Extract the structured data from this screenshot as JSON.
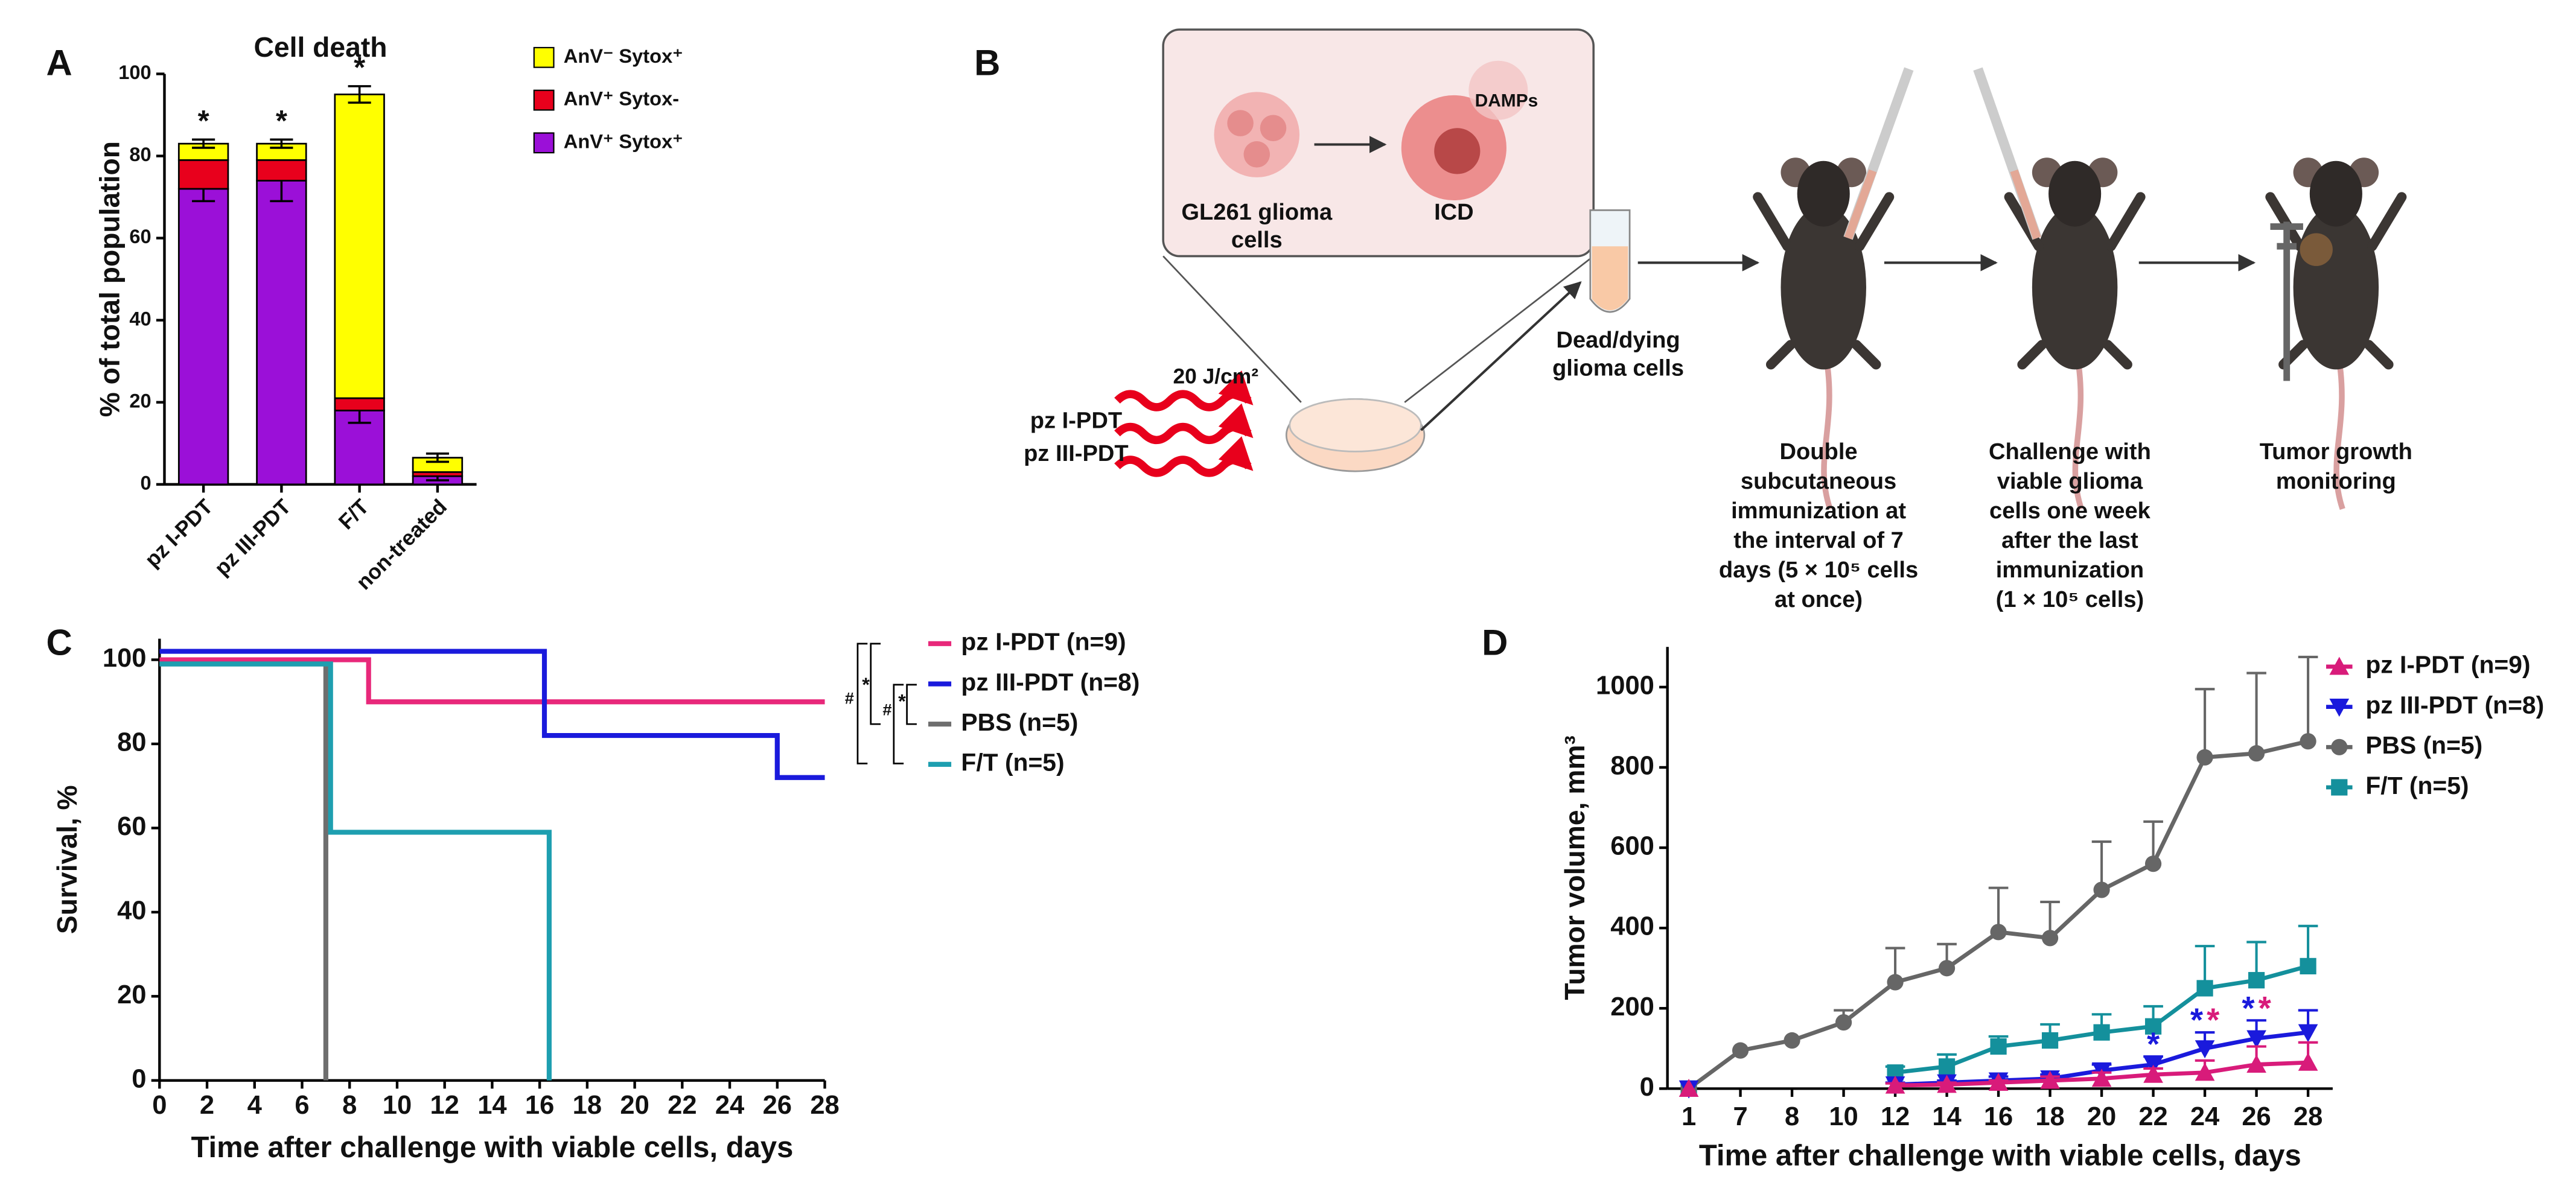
{
  "chart_data": [
    {
      "panel": "A",
      "type": "bar",
      "stacked": true,
      "title": "Cell death",
      "ylabel": "% of total population",
      "categories": [
        "pz I-PDT",
        "pz III-PDT",
        "F/T",
        "non-treated"
      ],
      "ylim": [
        0,
        100
      ],
      "yticks": [
        0,
        20,
        40,
        60,
        80,
        100
      ],
      "legend": "right",
      "series": [
        {
          "name": "AnV⁺ Sytox⁺",
          "color": "#9b10d8",
          "values": [
            72,
            74,
            18,
            2
          ],
          "errors": [
            3,
            5,
            3,
            1
          ]
        },
        {
          "name": "AnV⁺ Sytox-",
          "color": "#e8001c",
          "values": [
            7,
            5,
            3,
            1
          ]
        },
        {
          "name": "AnV⁻ Sytox⁺",
          "color": "#ffff00",
          "values": [
            4,
            4,
            74,
            3.5
          ],
          "errors": [
            1,
            1,
            2,
            1
          ]
        }
      ],
      "annotations": [
        {
          "text": "*",
          "category": "pz I-PDT"
        },
        {
          "text": "*",
          "category": "pz III-PDT"
        },
        {
          "text": "*",
          "category": "F/T"
        }
      ]
    },
    {
      "panel": "C",
      "type": "line",
      "step": true,
      "xlabel": "Time after challenge with viable cells, days",
      "ylabel": "Survival, %",
      "xlim": [
        0,
        28
      ],
      "xticks": [
        0,
        2,
        4,
        6,
        8,
        10,
        12,
        14,
        16,
        18,
        20,
        22,
        24,
        26,
        28
      ],
      "ylim": [
        0,
        105
      ],
      "yticks": [
        0,
        20,
        40,
        60,
        80,
        100
      ],
      "legend": "right",
      "series": [
        {
          "name": "pz I-PDT (n=9)",
          "color": "#e8287a",
          "x": [
            0,
            8.8,
            28
          ],
          "values": [
            100,
            90,
            90
          ]
        },
        {
          "name": "pz III-PDT (n=8)",
          "color": "#1a1adc",
          "x": [
            0,
            16.2,
            26,
            28
          ],
          "values": [
            102,
            82,
            72,
            72
          ]
        },
        {
          "name": "PBS (n=5)",
          "color": "#6e6e6e",
          "x": [
            0,
            7
          ],
          "values": [
            99,
            0
          ]
        },
        {
          "name": "F/T (n=5)",
          "color": "#1e9fb0",
          "x": [
            0,
            7.2,
            16.4
          ],
          "values": [
            99,
            59,
            0
          ]
        }
      ],
      "annotations": [
        "#",
        "*",
        "#",
        "*"
      ]
    },
    {
      "panel": "D",
      "type": "line",
      "xlabel": "Time after challenge with viable cells, days",
      "ylabel": "Tumor volume, mm³",
      "categories": [
        "1",
        "7",
        "8",
        "10",
        "12",
        "14",
        "16",
        "18",
        "20",
        "22",
        "24",
        "26",
        "28"
      ],
      "ylim": [
        0,
        1100
      ],
      "yticks": [
        0,
        200,
        400,
        600,
        800,
        1000
      ],
      "legend": "top-right",
      "series": [
        {
          "name": "pz I-PDT (n=9)",
          "color": "#d81b7a",
          "marker": "triangle-up",
          "values": [
            0,
            null,
            null,
            null,
            8,
            10,
            15,
            20,
            25,
            35,
            40,
            60,
            65
          ],
          "errors": [
            0,
            null,
            null,
            null,
            5,
            5,
            5,
            10,
            15,
            15,
            30,
            45,
            50
          ]
        },
        {
          "name": "pz III-PDT (n=8)",
          "color": "#1a1adc",
          "marker": "triangle-down",
          "values": [
            0,
            null,
            null,
            null,
            10,
            15,
            20,
            25,
            45,
            60,
            100,
            125,
            140
          ],
          "errors": [
            0,
            null,
            null,
            null,
            5,
            5,
            10,
            10,
            15,
            20,
            40,
            45,
            55
          ]
        },
        {
          "name": "PBS (n=5)",
          "color": "#666666",
          "marker": "circle",
          "values": [
            0,
            95,
            120,
            165,
            265,
            300,
            390,
            375,
            495,
            560,
            825,
            835,
            865
          ],
          "errors": [
            0,
            0,
            0,
            30,
            85,
            60,
            110,
            90,
            120,
            105,
            170,
            200,
            210
          ]
        },
        {
          "name": "F/T (n=5)",
          "color": "#14909c",
          "marker": "square",
          "values": [
            0,
            null,
            null,
            null,
            40,
            55,
            105,
            120,
            140,
            155,
            250,
            270,
            305
          ],
          "errors": [
            0,
            null,
            null,
            null,
            15,
            30,
            25,
            40,
            45,
            50,
            105,
            95,
            100
          ]
        }
      ],
      "annotations": [
        {
          "text": "*",
          "category": "22",
          "color": "#1a1adc"
        },
        {
          "text": "*",
          "category": "24",
          "color": "#1a1adc"
        },
        {
          "text": "*",
          "category": "24",
          "color": "#d81b7a"
        },
        {
          "text": "*",
          "category": "26",
          "color": "#1a1adc"
        },
        {
          "text": "*",
          "category": "26",
          "color": "#d81b7a"
        }
      ]
    }
  ],
  "diagram": {
    "panel": "B",
    "cells_label": [
      "GL261 glioma",
      "cells"
    ],
    "icd": "ICD",
    "damps": "DAMPs",
    "dead_cells": [
      "Dead/dying",
      "glioma cells"
    ],
    "dose": "20 J/cm²",
    "treatments": [
      "pz I-PDT",
      "pz III-PDT"
    ],
    "steps": [
      [
        "Double",
        "subcutaneous",
        "immunization at",
        "the interval of 7",
        "days (5 × 10⁵ cells",
        "at once)"
      ],
      [
        "Challenge with",
        "viable glioma",
        "cells one week",
        "after the last",
        "immunization",
        "(1 × 10⁵ cells)"
      ],
      [
        "Tumor growth",
        "monitoring"
      ]
    ]
  }
}
